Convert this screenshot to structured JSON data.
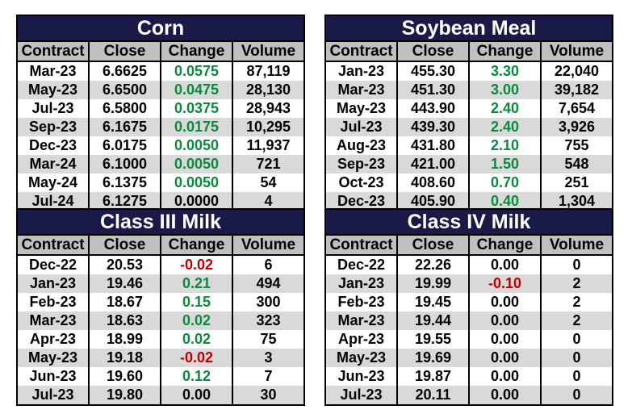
{
  "colors": {
    "title_bg": "#1a1a48",
    "header_bg": "#c0c0c0",
    "alt_row": "#d9d9d9",
    "positive": "#0a8a3c",
    "negative": "#c00000"
  },
  "tables": [
    {
      "title": "Corn",
      "headers": [
        "Contract",
        "Close",
        "Change",
        "Volume"
      ],
      "rows": [
        [
          "Mar-23",
          "6.6625",
          "0.0575",
          "87,119"
        ],
        [
          "May-23",
          "6.6500",
          "0.0475",
          "28,130"
        ],
        [
          "Jul-23",
          "6.5800",
          "0.0375",
          "28,943"
        ],
        [
          "Sep-23",
          "6.1675",
          "0.0175",
          "10,295"
        ],
        [
          "Dec-23",
          "6.0175",
          "0.0050",
          "11,937"
        ],
        [
          "Mar-24",
          "6.1000",
          "0.0050",
          "721"
        ],
        [
          "May-24",
          "6.1375",
          "0.0050",
          "54"
        ],
        [
          "Jul-24",
          "6.1275",
          "0.0000",
          "4"
        ]
      ]
    },
    {
      "title": "Soybean Meal",
      "headers": [
        "Contract",
        "Close",
        "Change",
        "Volume"
      ],
      "rows": [
        [
          "Jan-23",
          "455.30",
          "3.30",
          "22,040"
        ],
        [
          "Mar-23",
          "451.30",
          "3.00",
          "39,182"
        ],
        [
          "May-23",
          "443.90",
          "2.40",
          "7,654"
        ],
        [
          "Jul-23",
          "439.30",
          "2.40",
          "3,926"
        ],
        [
          "Aug-23",
          "431.80",
          "2.10",
          "755"
        ],
        [
          "Sep-23",
          "421.00",
          "1.50",
          "548"
        ],
        [
          "Oct-23",
          "408.60",
          "0.70",
          "251"
        ],
        [
          "Dec-23",
          "405.90",
          "0.40",
          "1,304"
        ]
      ]
    },
    {
      "title": "Class III Milk",
      "headers": [
        "Contract",
        "Close",
        "Change",
        "Volume"
      ],
      "rows": [
        [
          "Dec-22",
          "20.53",
          "-0.02",
          "6"
        ],
        [
          "Jan-23",
          "19.46",
          "0.21",
          "494"
        ],
        [
          "Feb-23",
          "18.67",
          "0.15",
          "300"
        ],
        [
          "Mar-23",
          "18.63",
          "0.02",
          "323"
        ],
        [
          "Apr-23",
          "18.99",
          "0.02",
          "75"
        ],
        [
          "May-23",
          "19.18",
          "-0.02",
          "3"
        ],
        [
          "Jun-23",
          "19.60",
          "0.12",
          "7"
        ],
        [
          "Jul-23",
          "19.80",
          "0.00",
          "30"
        ]
      ]
    },
    {
      "title": "Class IV Milk",
      "headers": [
        "Contract",
        "Close",
        "Change",
        "Volume"
      ],
      "rows": [
        [
          "Dec-22",
          "22.26",
          "0.00",
          "0"
        ],
        [
          "Jan-23",
          "19.99",
          "-0.10",
          "2"
        ],
        [
          "Feb-23",
          "19.45",
          "0.00",
          "2"
        ],
        [
          "Mar-23",
          "19.44",
          "0.00",
          "2"
        ],
        [
          "Apr-23",
          "19.55",
          "0.00",
          "0"
        ],
        [
          "May-23",
          "19.69",
          "0.00",
          "0"
        ],
        [
          "Jun-23",
          "19.87",
          "0.00",
          "0"
        ],
        [
          "Jul-23",
          "20.11",
          "0.00",
          "0"
        ]
      ]
    }
  ]
}
